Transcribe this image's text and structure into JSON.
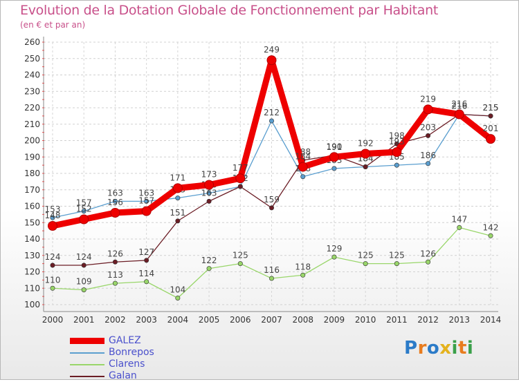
{
  "chart_data": {
    "type": "line",
    "title": "Evolution de la Dotation Globale de Fonctionnement par Habitant",
    "subtitle": "(en € et par an)",
    "xlabel": "",
    "ylabel": "",
    "categories": [
      "2000",
      "2001",
      "2002",
      "2003",
      "2004",
      "2005",
      "2006",
      "2007",
      "2008",
      "2009",
      "2010",
      "2011",
      "2012",
      "2013",
      "2014"
    ],
    "ylim": [
      100,
      260
    ],
    "yticks": [
      100,
      110,
      120,
      130,
      140,
      150,
      160,
      170,
      180,
      190,
      200,
      210,
      220,
      230,
      240,
      250,
      260
    ],
    "series": [
      {
        "name": "GALEZ",
        "color": "#ee0000",
        "emphasis": true,
        "values": [
          148,
          152,
          156,
          157,
          171,
          173,
          177,
          249,
          184,
          190,
          192,
          193,
          219,
          216,
          201
        ]
      },
      {
        "name": "Bonrepos",
        "color": "#5a9ecf",
        "values": [
          153,
          157,
          163,
          163,
          165,
          168,
          172,
          212,
          178,
          183,
          184,
          185,
          186,
          216,
          215
        ]
      },
      {
        "name": "Clarens",
        "color": "#99d66a",
        "values": [
          110,
          109,
          113,
          114,
          104,
          122,
          125,
          116,
          118,
          129,
          125,
          125,
          126,
          147,
          142
        ]
      },
      {
        "name": "Galan",
        "color": "#6b1d25",
        "values": [
          124,
          124,
          126,
          127,
          151,
          163,
          172,
          159,
          188,
          191,
          184,
          198,
          203,
          216,
          215
        ]
      }
    ]
  },
  "legend": {
    "items": [
      {
        "label": "GALEZ",
        "text_color": "#4a50cc",
        "line_color": "#ee0000"
      },
      {
        "label": "Bonrepos",
        "text_color": "#4a50cc",
        "line_color": "#5a9ecf"
      },
      {
        "label": "Clarens",
        "text_color": "#4a50cc",
        "line_color": "#99d66a"
      },
      {
        "label": "Galan",
        "text_color": "#4a50cc",
        "line_color": "#6b1d25"
      }
    ]
  },
  "logo": {
    "letters": [
      "P",
      "r",
      "o",
      "x",
      "i",
      "t",
      "i"
    ],
    "colors": [
      "#2b7bc8",
      "#e87c1e",
      "#2b7bc8",
      "#e4b21d",
      "#3aa04a",
      "#e87c1e",
      "#3aa04a"
    ]
  }
}
